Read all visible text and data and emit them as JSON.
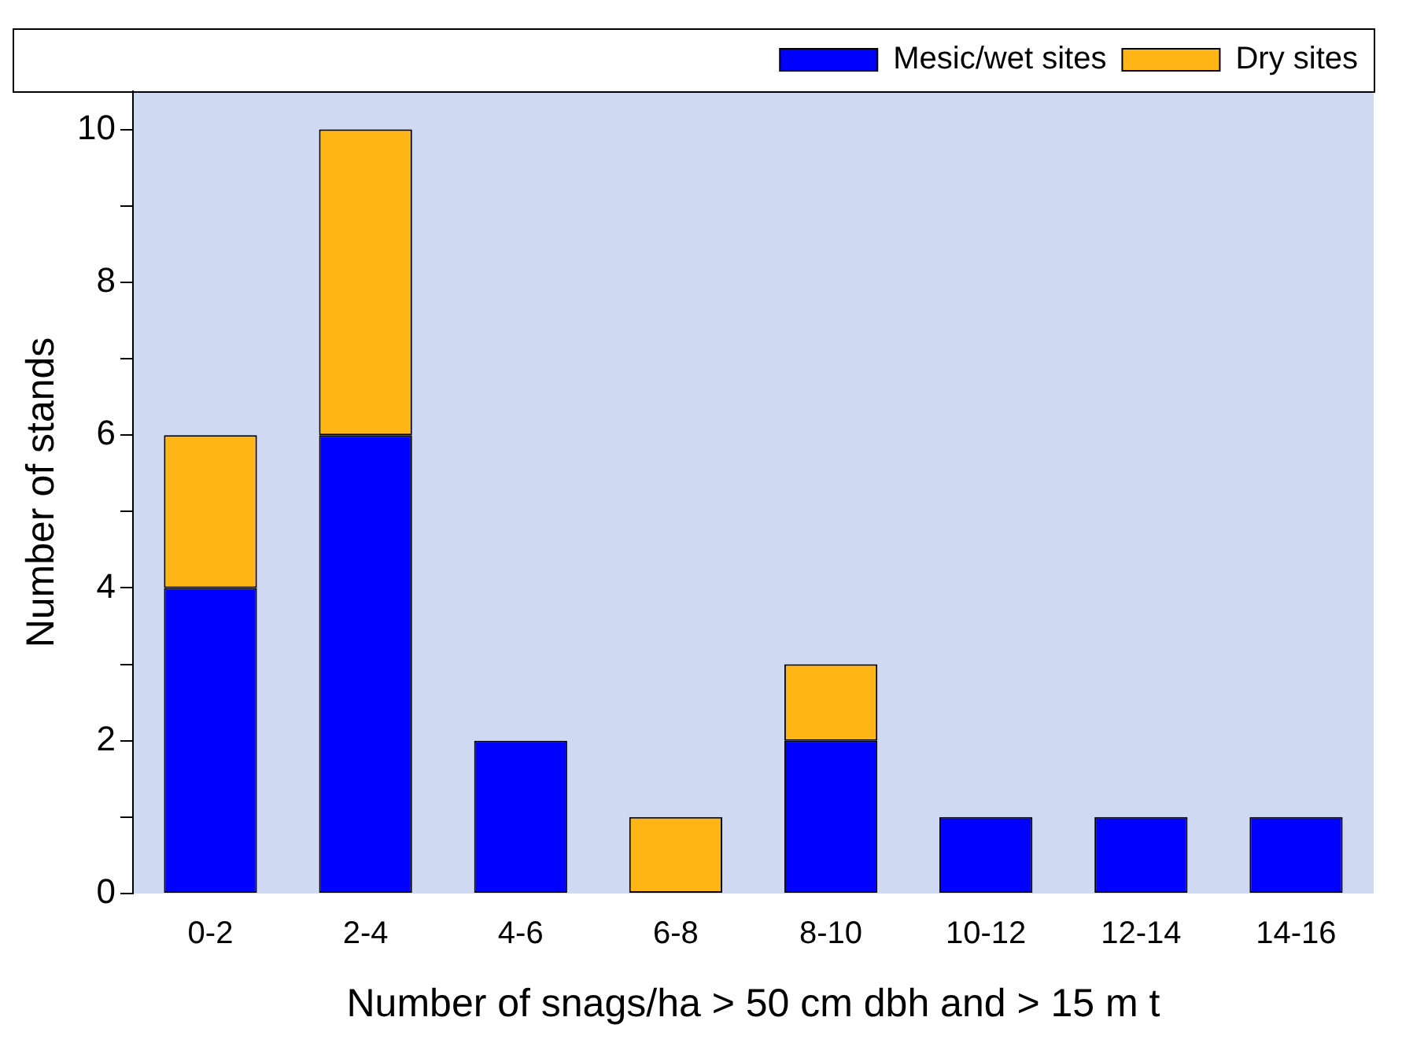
{
  "chart_data": {
    "type": "bar",
    "xlabel": "Number of snags/ha > 50 cm dbh and > 15 m t",
    "ylabel": "Number of stands",
    "categories": [
      "0-2",
      "2-4",
      "4-6",
      "6-8",
      "8-10",
      "10-12",
      "12-14",
      "14-16"
    ],
    "series": [
      {
        "name": "Mesic/wet sites",
        "color": "#0000ff",
        "values": [
          4,
          6,
          2,
          0,
          2,
          1,
          1,
          1
        ]
      },
      {
        "name": "Dry sites",
        "color": "#ffb515",
        "values": [
          2,
          4,
          0,
          1,
          1,
          0,
          0,
          0
        ]
      }
    ],
    "stacked": true,
    "ylim": [
      0,
      10.5
    ],
    "yticks": [
      0,
      {
        "value": 1,
        "label": null
      },
      2,
      {
        "value": 3,
        "label": null
      },
      4,
      {
        "value": 5,
        "label": null
      },
      6,
      {
        "value": 7,
        "label": null
      },
      8,
      {
        "value": 9,
        "label": null
      },
      10
    ],
    "grid": false,
    "legend": "top right"
  }
}
